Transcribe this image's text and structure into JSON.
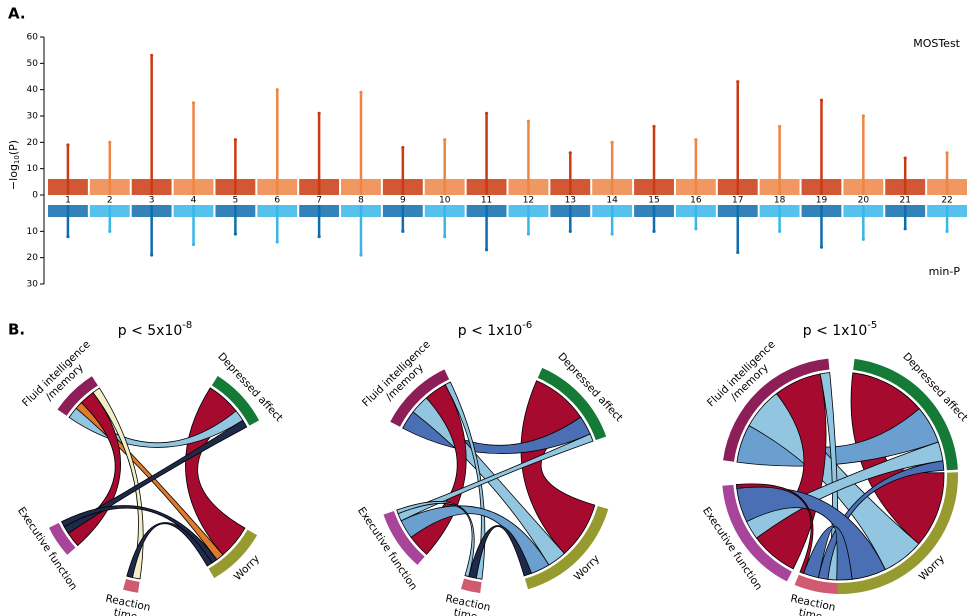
{
  "chart_data": [
    {
      "type": "miami",
      "label": "A.",
      "ylabel": "−log",
      "ylabel_sub": "10",
      "ylabel_end": "(P)",
      "categories": [
        "1",
        "2",
        "3",
        "4",
        "5",
        "6",
        "7",
        "8",
        "9",
        "10",
        "11",
        "12",
        "13",
        "14",
        "15",
        "16",
        "17",
        "18",
        "19",
        "20",
        "21",
        "22"
      ],
      "series": [
        {
          "name": "MOSTest",
          "colors": [
            "#c93a12",
            "#ef8545"
          ],
          "values": [
            19,
            20,
            53,
            35,
            21,
            40,
            31,
            39,
            18,
            21,
            31,
            28,
            16,
            20,
            26,
            21,
            43,
            26,
            36,
            30,
            14,
            16
          ]
        },
        {
          "name": "min-P",
          "colors": [
            "#0f6cae",
            "#38b6ea"
          ],
          "axis": "y2",
          "values": [
            12,
            10,
            19,
            15,
            11,
            14,
            12,
            19,
            10,
            12,
            17,
            11,
            10,
            11,
            10,
            9,
            18,
            10,
            16,
            13,
            9,
            10
          ]
        }
      ],
      "ylim": [
        0,
        60
      ],
      "yticks": [
        0,
        10,
        20,
        30,
        40,
        50,
        60
      ],
      "y2lim": [
        0,
        30
      ],
      "y2ticks": [
        10,
        20,
        30
      ]
    },
    {
      "type": "chord",
      "label": "B.",
      "title": "p < 5x10",
      "title_sup": "-8",
      "nodes": [
        {
          "label": [
            "Fluid intelligence",
            "/memory"
          ],
          "color": "#8c1f57"
        },
        {
          "label": [
            "Depressed affect"
          ],
          "color": "#157a36"
        },
        {
          "label": [
            "Worry"
          ],
          "color": "#969a2f"
        },
        {
          "label": [
            "Reaction",
            "time"
          ],
          "color": "#d05a70"
        },
        {
          "label": [
            "Executive function"
          ],
          "color": "#a8449a"
        }
      ],
      "links": [
        {
          "source": 1,
          "target": 2,
          "value": 18,
          "color": "#a60a2e"
        },
        {
          "source": 0,
          "target": 1,
          "value": 6,
          "color": "#92c5e0"
        },
        {
          "source": 0,
          "target": 2,
          "value": 4,
          "color": "#e07a2a"
        },
        {
          "source": 0,
          "target": 4,
          "value": 8,
          "color": "#a60a2e"
        },
        {
          "source": 0,
          "target": 3,
          "value": 4,
          "color": "#f2efc8"
        },
        {
          "source": 4,
          "target": 1,
          "value": 4,
          "color": "#1f2a4a"
        },
        {
          "source": 4,
          "target": 2,
          "value": 3,
          "color": "#1f2a4a"
        },
        {
          "source": 3,
          "target": 2,
          "value": 3,
          "color": "#1f2a4a"
        }
      ]
    },
    {
      "type": "chord",
      "label": "",
      "title": "p < 1x10",
      "title_sup": "-6",
      "nodes": [
        {
          "label": [
            "Fluid intelligence",
            "/memory"
          ],
          "color": "#8c1f57"
        },
        {
          "label": [
            "Depressed affect"
          ],
          "color": "#157a36"
        },
        {
          "label": [
            "Worry"
          ],
          "color": "#969a2f"
        },
        {
          "label": [
            "Reaction",
            "time"
          ],
          "color": "#d05a70"
        },
        {
          "label": [
            "Executive function"
          ],
          "color": "#a8449a"
        }
      ],
      "links": [
        {
          "source": 1,
          "target": 2,
          "value": 30,
          "color": "#a60a2e"
        },
        {
          "source": 0,
          "target": 1,
          "value": 10,
          "color": "#4b6fb5"
        },
        {
          "source": 0,
          "target": 2,
          "value": 10,
          "color": "#92c5e0"
        },
        {
          "source": 0,
          "target": 4,
          "value": 12,
          "color": "#a60a2e"
        },
        {
          "source": 0,
          "target": 3,
          "value": 3,
          "color": "#92c5e0"
        },
        {
          "source": 4,
          "target": 2,
          "value": 10,
          "color": "#6a9fd0"
        },
        {
          "source": 4,
          "target": 1,
          "value": 4,
          "color": "#92c5e0"
        },
        {
          "source": 3,
          "target": 2,
          "value": 4,
          "color": "#1f2a4a"
        },
        {
          "source": 4,
          "target": 3,
          "value": 2,
          "color": "#92c5e0"
        }
      ]
    },
    {
      "type": "chord",
      "label": "",
      "title": "p < 1x10",
      "title_sup": "-5",
      "nodes": [
        {
          "label": [
            "Fluid intelligence",
            "/memory"
          ],
          "color": "#8c1f57"
        },
        {
          "label": [
            "Depressed affect"
          ],
          "color": "#157a36"
        },
        {
          "label": [
            "Worry"
          ],
          "color": "#969a2f"
        },
        {
          "label": [
            "Reaction",
            "time"
          ],
          "color": "#d05a70"
        },
        {
          "label": [
            "Executive function"
          ],
          "color": "#a8449a"
        }
      ],
      "links": [
        {
          "source": 1,
          "target": 2,
          "value": 40,
          "color": "#a60a2e"
        },
        {
          "source": 0,
          "target": 1,
          "value": 20,
          "color": "#6a9fd0"
        },
        {
          "source": 0,
          "target": 2,
          "value": 22,
          "color": "#92c5e0"
        },
        {
          "source": 0,
          "target": 4,
          "value": 25,
          "color": "#a60a2e"
        },
        {
          "source": 0,
          "target": 3,
          "value": 5,
          "color": "#92c5e0"
        },
        {
          "source": 4,
          "target": 1,
          "value": 10,
          "color": "#92c5e0"
        },
        {
          "source": 3,
          "target": 1,
          "value": 5,
          "color": "#4b6fb5"
        },
        {
          "source": 4,
          "target": 2,
          "value": 18,
          "color": "#4b6fb5"
        },
        {
          "source": 3,
          "target": 2,
          "value": 8,
          "color": "#4b6fb5"
        },
        {
          "source": 4,
          "target": 3,
          "value": 2,
          "color": "#a60a2e"
        }
      ]
    }
  ]
}
